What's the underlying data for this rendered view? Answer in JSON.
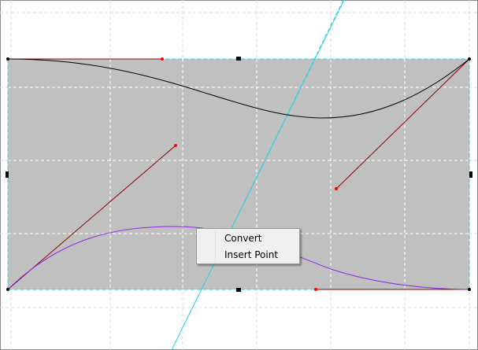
{
  "canvas": {
    "background": "#ffffff",
    "frame_color": "#8a8a8a",
    "grid_color": "#d9d9d9",
    "shape_fill": "#c0c0c0",
    "shape_grid_color": "#ffffff",
    "guide_color": "#35d0e0",
    "curve_color": "#000000",
    "curve2_color": "#8a2be2",
    "handle_line_color": "#8b0000",
    "handle_point_color": "#ff0000",
    "anchor_color": "#000000"
  },
  "context_menu": {
    "items": [
      {
        "label": "Convert"
      },
      {
        "label": "Insert Point"
      }
    ]
  }
}
